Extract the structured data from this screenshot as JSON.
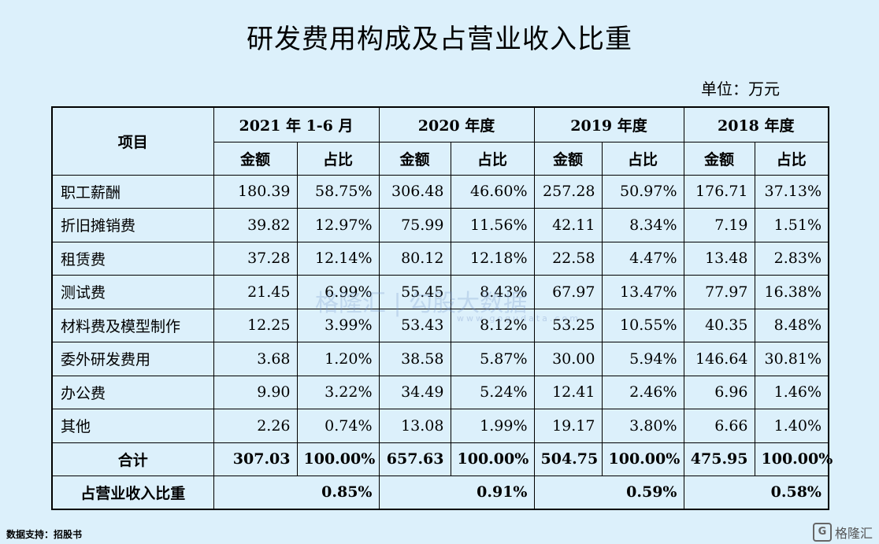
{
  "title": "研发费用构成及占营业收入比重",
  "unit": "单位：万元",
  "header": {
    "item": "项目",
    "periods": [
      "2021 年 1-6 月",
      "2020 年度",
      "2019 年度",
      "2018 年度"
    ],
    "amount": "金额",
    "ratio": "占比"
  },
  "rows": [
    {
      "label": "职工薪酬",
      "cells": [
        "180.39",
        "58.75%",
        "306.48",
        "46.60%",
        "257.28",
        "50.97%",
        "176.71",
        "37.13%"
      ]
    },
    {
      "label": "折旧摊销费",
      "cells": [
        "39.82",
        "12.97%",
        "75.99",
        "11.56%",
        "42.11",
        "8.34%",
        "7.19",
        "1.51%"
      ]
    },
    {
      "label": "租赁费",
      "cells": [
        "37.28",
        "12.14%",
        "80.12",
        "12.18%",
        "22.58",
        "4.47%",
        "13.48",
        "2.83%"
      ]
    },
    {
      "label": "测试费",
      "cells": [
        "21.45",
        "6.99%",
        "55.45",
        "8.43%",
        "67.97",
        "13.47%",
        "77.97",
        "16.38%"
      ]
    },
    {
      "label": "材料费及模型制作",
      "cells": [
        "12.25",
        "3.99%",
        "53.43",
        "8.12%",
        "53.25",
        "10.55%",
        "40.35",
        "8.48%"
      ]
    },
    {
      "label": "委外研发费用",
      "cells": [
        "3.68",
        "1.20%",
        "38.58",
        "5.87%",
        "30.00",
        "5.94%",
        "146.64",
        "30.81%"
      ]
    },
    {
      "label": "办公费",
      "cells": [
        "9.90",
        "3.22%",
        "34.49",
        "5.24%",
        "12.41",
        "2.46%",
        "6.96",
        "1.46%"
      ]
    },
    {
      "label": "其他",
      "cells": [
        "2.26",
        "0.74%",
        "13.08",
        "1.99%",
        "19.17",
        "3.80%",
        "6.66",
        "1.40%"
      ]
    }
  ],
  "total": {
    "label": "合计",
    "cells": [
      "307.03",
      "100.00%",
      "657.63",
      "100.00%",
      "504.75",
      "100.00%",
      "475.95",
      "100.00%"
    ]
  },
  "revenue_share": {
    "label": "占营业收入比重",
    "cells": [
      "0.85%",
      "0.91%",
      "0.59%",
      "0.58%"
    ]
  },
  "watermark": {
    "text": "格隆汇 | 勾股大数据",
    "sub": "www.gogudata.com"
  },
  "source": "数据支持：招股书",
  "logo": {
    "icon": "G",
    "text": "格隆汇"
  }
}
